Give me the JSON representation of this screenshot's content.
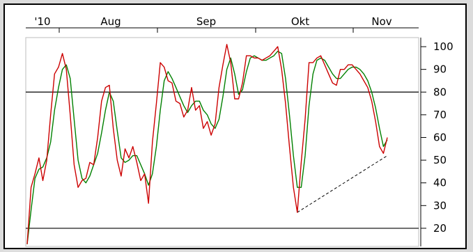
{
  "chart_data": {
    "type": "line",
    "title": "",
    "xlabel": "",
    "ylabel": "",
    "ylim": [
      12,
      104
    ],
    "yticks": [
      20,
      30,
      40,
      50,
      60,
      70,
      80,
      90,
      100
    ],
    "xtick_labels": [
      "'10",
      "Aug",
      "Sep",
      "Okt",
      "Nov"
    ],
    "reference_lines": [
      80,
      20
    ],
    "grid": false,
    "legend": "none",
    "x_range": [
      0,
      100
    ],
    "series": [
      {
        "color": "#cc0000",
        "points": [
          [
            0,
            13
          ],
          [
            1,
            38
          ],
          [
            2,
            44
          ],
          [
            3,
            51
          ],
          [
            4,
            41
          ],
          [
            5,
            50
          ],
          [
            6,
            70
          ],
          [
            7,
            88
          ],
          [
            8,
            91
          ],
          [
            9,
            97
          ],
          [
            10,
            90
          ],
          [
            11,
            70
          ],
          [
            12,
            48
          ],
          [
            13,
            38
          ],
          [
            14,
            41
          ],
          [
            15,
            42
          ],
          [
            16,
            49
          ],
          [
            17,
            48
          ],
          [
            18,
            60
          ],
          [
            19,
            76
          ],
          [
            20,
            82
          ],
          [
            21,
            83
          ],
          [
            22,
            64
          ],
          [
            23,
            50
          ],
          [
            24,
            43
          ],
          [
            25,
            55
          ],
          [
            26,
            51
          ],
          [
            27,
            56
          ],
          [
            28,
            49
          ],
          [
            29,
            41
          ],
          [
            30,
            44
          ],
          [
            31,
            31
          ],
          [
            32,
            58
          ],
          [
            33,
            75
          ],
          [
            34,
            93
          ],
          [
            35,
            91
          ],
          [
            36,
            85
          ],
          [
            37,
            84
          ],
          [
            38,
            76
          ],
          [
            39,
            75
          ],
          [
            40,
            69
          ],
          [
            41,
            72
          ],
          [
            42,
            82
          ],
          [
            43,
            72
          ],
          [
            44,
            74
          ],
          [
            45,
            64
          ],
          [
            46,
            67
          ],
          [
            47,
            61
          ],
          [
            48,
            66
          ],
          [
            49,
            82
          ],
          [
            50,
            92
          ],
          [
            51,
            101
          ],
          [
            52,
            93
          ],
          [
            53,
            77
          ],
          [
            54,
            77
          ],
          [
            55,
            84
          ],
          [
            56,
            96
          ],
          [
            57,
            96
          ],
          [
            58,
            95
          ],
          [
            59,
            95
          ],
          [
            60,
            94
          ],
          [
            61,
            95
          ],
          [
            62,
            96
          ],
          [
            63,
            98
          ],
          [
            64,
            100
          ],
          [
            65,
            90
          ],
          [
            66,
            75
          ],
          [
            67,
            56
          ],
          [
            68,
            38
          ],
          [
            69,
            27
          ],
          [
            70,
            49
          ],
          [
            71,
            68
          ],
          [
            72,
            93
          ],
          [
            73,
            93
          ],
          [
            74,
            95
          ],
          [
            75,
            96
          ],
          [
            76,
            92
          ],
          [
            77,
            88
          ],
          [
            78,
            84
          ],
          [
            79,
            83
          ],
          [
            80,
            90
          ],
          [
            81,
            90
          ],
          [
            82,
            92
          ],
          [
            83,
            92
          ],
          [
            84,
            90
          ],
          [
            85,
            88
          ],
          [
            86,
            85
          ],
          [
            87,
            82
          ],
          [
            88,
            76
          ],
          [
            89,
            67
          ],
          [
            90,
            56
          ],
          [
            91,
            53
          ],
          [
            92,
            60
          ]
        ]
      },
      {
        "color": "#008000",
        "points": [
          [
            0,
            13
          ],
          [
            1,
            28
          ],
          [
            2,
            42
          ],
          [
            3,
            46
          ],
          [
            4,
            47
          ],
          [
            5,
            51
          ],
          [
            6,
            58
          ],
          [
            7,
            72
          ],
          [
            8,
            82
          ],
          [
            9,
            90
          ],
          [
            10,
            92
          ],
          [
            11,
            86
          ],
          [
            12,
            68
          ],
          [
            13,
            50
          ],
          [
            14,
            42
          ],
          [
            15,
            40
          ],
          [
            16,
            43
          ],
          [
            17,
            48
          ],
          [
            18,
            53
          ],
          [
            19,
            62
          ],
          [
            20,
            72
          ],
          [
            21,
            80
          ],
          [
            22,
            76
          ],
          [
            23,
            63
          ],
          [
            24,
            51
          ],
          [
            25,
            49
          ],
          [
            26,
            50
          ],
          [
            27,
            52
          ],
          [
            28,
            52
          ],
          [
            29,
            48
          ],
          [
            30,
            44
          ],
          [
            31,
            39
          ],
          [
            32,
            44
          ],
          [
            33,
            56
          ],
          [
            34,
            72
          ],
          [
            35,
            85
          ],
          [
            36,
            89
          ],
          [
            37,
            86
          ],
          [
            38,
            82
          ],
          [
            39,
            78
          ],
          [
            40,
            74
          ],
          [
            41,
            71
          ],
          [
            42,
            74
          ],
          [
            43,
            76
          ],
          [
            44,
            76
          ],
          [
            45,
            72
          ],
          [
            46,
            70
          ],
          [
            47,
            66
          ],
          [
            48,
            64
          ],
          [
            49,
            68
          ],
          [
            50,
            78
          ],
          [
            51,
            90
          ],
          [
            52,
            95
          ],
          [
            53,
            88
          ],
          [
            54,
            79
          ],
          [
            55,
            81
          ],
          [
            56,
            89
          ],
          [
            57,
            95
          ],
          [
            58,
            96
          ],
          [
            59,
            95
          ],
          [
            60,
            94
          ],
          [
            61,
            94
          ],
          [
            62,
            95
          ],
          [
            63,
            96
          ],
          [
            64,
            98
          ],
          [
            65,
            97
          ],
          [
            66,
            86
          ],
          [
            67,
            70
          ],
          [
            68,
            52
          ],
          [
            69,
            38
          ],
          [
            70,
            38
          ],
          [
            71,
            52
          ],
          [
            72,
            74
          ],
          [
            73,
            88
          ],
          [
            74,
            94
          ],
          [
            75,
            95
          ],
          [
            76,
            94
          ],
          [
            77,
            91
          ],
          [
            78,
            88
          ],
          [
            79,
            86
          ],
          [
            80,
            86
          ],
          [
            81,
            88
          ],
          [
            82,
            90
          ],
          [
            83,
            91
          ],
          [
            84,
            91
          ],
          [
            85,
            90
          ],
          [
            86,
            88
          ],
          [
            87,
            85
          ],
          [
            88,
            80
          ],
          [
            89,
            73
          ],
          [
            90,
            64
          ],
          [
            91,
            56
          ],
          [
            92,
            59
          ]
        ]
      }
    ],
    "trendline": {
      "style": "dashed",
      "color": "#000000",
      "from": [
        69,
        27
      ],
      "to": [
        92,
        52
      ]
    }
  }
}
